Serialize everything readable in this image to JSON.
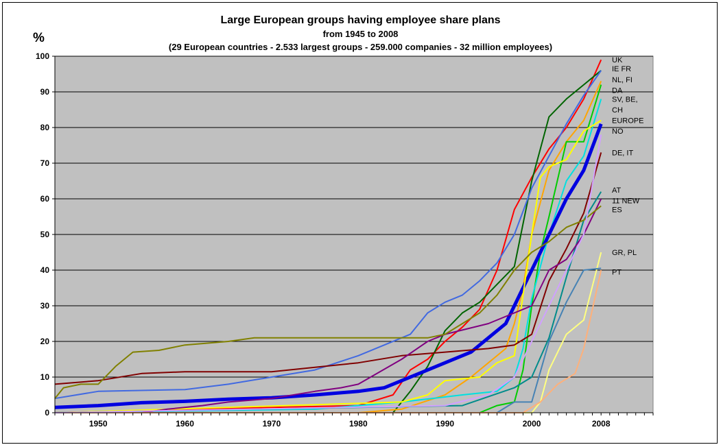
{
  "chart_data": {
    "type": "line",
    "title": "Large European groups having employee share plans",
    "subtitle": "from 1945 to 2008",
    "subtitle2": "(29 European countries - 2.533 largest groups - 259.000 companies - 32 million employees)",
    "ylabel": "%",
    "xlabel": "",
    "xlim": [
      1945,
      2014
    ],
    "ylim": [
      0,
      100
    ],
    "xticks": [
      1950,
      1960,
      1970,
      1980,
      1990,
      2000,
      2008
    ],
    "yticks": [
      0,
      10,
      20,
      30,
      40,
      50,
      60,
      70,
      80,
      90,
      100
    ],
    "grid": true,
    "plot_background": "#c0c0c0",
    "series": [
      {
        "name": "UK",
        "color": "#ff0000",
        "x": [
          1945,
          1960,
          1970,
          1980,
          1984,
          1986,
          1988,
          1990,
          1992,
          1994,
          1996,
          1998,
          2000,
          2002,
          2004,
          2006,
          2008
        ],
        "y": [
          0,
          1,
          1.5,
          2,
          5,
          12,
          15,
          20,
          24,
          29,
          40,
          57,
          66,
          74,
          80,
          88,
          99
        ]
      },
      {
        "name": "IE FR",
        "color": "#006400",
        "x": [
          1945,
          1984,
          1986,
          1988,
          1990,
          1992,
          1994,
          1996,
          1998,
          2000,
          2002,
          2004,
          2006,
          2008
        ],
        "y": [
          0,
          0,
          6,
          13,
          23,
          28,
          31,
          36,
          41,
          65,
          83,
          88,
          92,
          96
        ]
      },
      {
        "name": "NL, FI",
        "color": "#4169e1",
        "x": [
          1945,
          1950,
          1960,
          1965,
          1970,
          1975,
          1980,
          1983,
          1986,
          1988,
          1990,
          1992,
          1994,
          1996,
          1998,
          2000,
          2002,
          2004,
          2006,
          2008
        ],
        "y": [
          4,
          6,
          6.5,
          8,
          10,
          12,
          16,
          19,
          22,
          28,
          31,
          33,
          37,
          42,
          50,
          63,
          72,
          81,
          89,
          96
        ]
      },
      {
        "name": "DA",
        "color": "#ffa500",
        "x": [
          1945,
          1980,
          1985,
          1990,
          1993,
          1995,
          1997,
          1998,
          1999,
          2000,
          2002,
          2004,
          2006,
          2008
        ],
        "y": [
          0,
          0,
          1,
          5,
          10,
          14,
          18,
          25,
          35,
          50,
          68,
          76,
          82,
          93
        ]
      },
      {
        "name": "SV, BE,",
        "color": "#00cc00",
        "x": [
          1945,
          1994,
          1996,
          1998,
          1999,
          2000,
          2001,
          2002,
          2004,
          2006,
          2008
        ],
        "y": [
          0,
          0,
          2,
          3,
          12,
          30,
          45,
          55,
          76,
          76,
          92
        ]
      },
      {
        "name": "CH",
        "color": "#00e0e0",
        "x": [
          1945,
          1975,
          1985,
          1992,
          1996,
          1998,
          1999,
          2000,
          2002,
          2004,
          2006,
          2008
        ],
        "y": [
          0,
          1,
          3,
          5,
          6,
          10,
          18,
          32,
          50,
          65,
          72,
          88
        ]
      },
      {
        "name": "EUROPE",
        "color": "#0000e0",
        "x": [
          1945,
          1950,
          1955,
          1960,
          1965,
          1970,
          1975,
          1980,
          1983,
          1985,
          1987,
          1990,
          1993,
          1995,
          1997,
          1998,
          1999,
          2000,
          2002,
          2004,
          2006,
          2008
        ],
        "y": [
          1.5,
          2,
          2.8,
          3.2,
          3.8,
          4.2,
          5,
          6,
          7,
          9,
          11,
          14,
          17,
          21,
          25,
          30,
          35,
          40,
          50,
          60,
          68,
          81
        ]
      },
      {
        "name": "NO",
        "color": "#ffff00",
        "x": [
          1945,
          1985,
          1988,
          1990,
          1994,
          1996,
          1998,
          2000,
          2001,
          2002,
          2004,
          2006,
          2008
        ],
        "y": [
          0,
          3,
          5,
          9,
          10,
          14,
          16,
          50,
          66,
          69,
          71,
          79,
          82
        ]
      },
      {
        "name": "DE, IT",
        "color": "#800000",
        "x": [
          1945,
          1950,
          1955,
          1960,
          1970,
          1980,
          1985,
          1990,
          1995,
          1998,
          2000,
          2002,
          2004,
          2006,
          2008
        ],
        "y": [
          8,
          9,
          11,
          11.5,
          11.5,
          14,
          16,
          17,
          18,
          19,
          22,
          37,
          46,
          56,
          73
        ]
      },
      {
        "name": "AT",
        "color": "#008b8b",
        "x": [
          1945,
          1992,
          1998,
          2000,
          2002,
          2004,
          2006,
          2008
        ],
        "y": [
          0,
          2,
          7,
          10,
          21,
          38,
          54,
          62
        ]
      },
      {
        "name": "11 NEW",
        "color": "#800080",
        "x": [
          1945,
          1955,
          1958,
          1962,
          1965,
          1970,
          1975,
          1978,
          1980,
          1985,
          1988,
          1990,
          1995,
          2000,
          2002,
          2004,
          2006,
          2008
        ],
        "y": [
          0,
          0,
          1,
          2,
          3,
          4,
          6,
          7,
          8,
          15,
          20,
          22,
          25,
          30,
          40,
          43,
          50,
          60
        ]
      },
      {
        "name": "ES",
        "color": "#808000",
        "x": [
          1945,
          1946,
          1948,
          1950,
          1952,
          1954,
          1957,
          1960,
          1965,
          1968,
          1975,
          1985,
          1988,
          1990,
          1992,
          1994,
          1996,
          1998,
          2000,
          2002,
          2004,
          2006,
          2008
        ],
        "y": [
          4,
          7,
          8,
          8,
          13,
          17,
          17.5,
          19,
          20,
          21,
          21,
          21,
          21,
          22,
          25,
          28,
          33,
          40,
          45,
          48,
          52,
          54,
          58
        ]
      },
      {
        "name": "GR, PL",
        "color": "#ffff80",
        "x": [
          1945,
          2000,
          2001,
          2002,
          2004,
          2006,
          2008
        ],
        "y": [
          0,
          0,
          3,
          12,
          22,
          26,
          45
        ]
      },
      {
        "name": "PT",
        "color": "#4682b4",
        "x": [
          1945,
          1996,
          1998,
          2000,
          2002,
          2004,
          2006,
          2008
        ],
        "y": [
          0,
          0,
          3,
          3,
          20,
          31,
          40,
          40.5
        ]
      },
      {
        "name": "",
        "color": "#ffb07a",
        "x": [
          1945,
          1999,
          2001,
          2003,
          2005,
          2006,
          2008
        ],
        "y": [
          0,
          0,
          3,
          8,
          11,
          18,
          40
        ]
      },
      {
        "name": "",
        "color": "#d0a0ff",
        "x": [
          1945,
          1990,
          1995,
          1998,
          2000,
          2002,
          2004,
          2006,
          2008
        ],
        "y": [
          0,
          2,
          5,
          10,
          20,
          30,
          40,
          50,
          78
        ]
      }
    ],
    "legend_labels": [
      {
        "text": "UK",
        "y": 99
      },
      {
        "text": "IE FR",
        "y": 96.5
      },
      {
        "text": "NL, FI",
        "y": 93.5
      },
      {
        "text": "DA",
        "y": 90.5
      },
      {
        "text": "SV, BE,",
        "y": 88
      },
      {
        "text": "CH",
        "y": 85
      },
      {
        "text": "EUROPE",
        "y": 82
      },
      {
        "text": "NO",
        "y": 79
      },
      {
        "text": "DE, IT",
        "y": 73
      },
      {
        "text": "AT",
        "y": 62.5
      },
      {
        "text": "11 NEW",
        "y": 59.5
      },
      {
        "text": "ES",
        "y": 57
      },
      {
        "text": "GR, PL",
        "y": 45
      },
      {
        "text": "PT",
        "y": 39.5
      }
    ]
  }
}
